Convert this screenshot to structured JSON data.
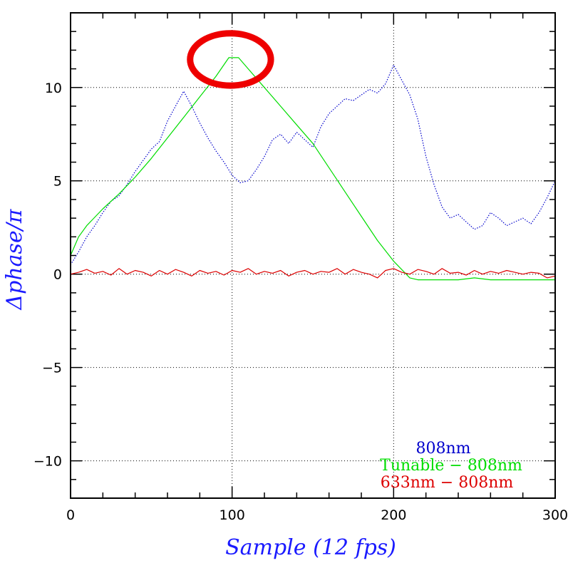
{
  "chart_data": {
    "type": "line",
    "xlabel": "Sample (12 fps)",
    "ylabel": "Δphase/π",
    "xlim": [
      0,
      300
    ],
    "ylim": [
      -12,
      14
    ],
    "x_ticks": [
      0,
      100,
      200,
      300
    ],
    "y_ticks": [
      -10,
      -5,
      0,
      5,
      10
    ],
    "x_tick_labels": [
      "0",
      "100",
      "200",
      "300"
    ],
    "y_tick_labels": [
      "−10",
      "−5",
      "0",
      "5",
      "10"
    ],
    "grid": true,
    "legend_position": "bottom-right",
    "series": [
      {
        "name": "808nm",
        "color": "#0000cc",
        "style": "dotted",
        "x": [
          0,
          5,
          10,
          15,
          20,
          25,
          30,
          35,
          40,
          45,
          50,
          55,
          60,
          65,
          70,
          75,
          80,
          85,
          90,
          95,
          100,
          105,
          110,
          115,
          120,
          125,
          130,
          135,
          140,
          145,
          150,
          155,
          160,
          165,
          170,
          175,
          180,
          185,
          190,
          195,
          200,
          205,
          210,
          215,
          220,
          225,
          230,
          235,
          240,
          245,
          250,
          255,
          260,
          265,
          270,
          275,
          280,
          285,
          290,
          295,
          300
        ],
        "y": [
          0.5,
          1.2,
          2.0,
          2.6,
          3.3,
          3.9,
          4.2,
          4.8,
          5.5,
          6.1,
          6.7,
          7.1,
          8.2,
          9.0,
          9.8,
          9.0,
          8.1,
          7.3,
          6.6,
          6.0,
          5.3,
          4.9,
          5.0,
          5.6,
          6.3,
          7.2,
          7.5,
          7.0,
          7.6,
          7.2,
          6.8,
          7.9,
          8.6,
          9.0,
          9.4,
          9.3,
          9.6,
          9.9,
          9.7,
          10.2,
          11.2,
          10.4,
          9.6,
          8.3,
          6.3,
          4.8,
          3.6,
          3.0,
          3.2,
          2.8,
          2.4,
          2.6,
          3.3,
          3.0,
          2.6,
          2.8,
          3.0,
          2.7,
          3.3,
          4.1,
          5.0
        ]
      },
      {
        "name": "Tunable − 808nm",
        "color": "#00dd00",
        "style": "solid",
        "x": [
          0,
          5,
          10,
          20,
          30,
          40,
          50,
          60,
          70,
          80,
          90,
          98,
          104,
          110,
          120,
          130,
          140,
          150,
          160,
          170,
          180,
          190,
          200,
          210,
          215,
          220,
          230,
          240,
          250,
          260,
          270,
          280,
          290,
          300
        ],
        "y": [
          1.0,
          2.0,
          2.6,
          3.5,
          4.3,
          5.2,
          6.2,
          7.3,
          8.4,
          9.5,
          10.6,
          11.6,
          11.6,
          11.0,
          10.0,
          9.0,
          8.0,
          7.0,
          5.7,
          4.4,
          3.1,
          1.8,
          0.7,
          -0.2,
          -0.3,
          -0.3,
          -0.3,
          -0.3,
          -0.2,
          -0.3,
          -0.3,
          -0.3,
          -0.3,
          -0.3
        ]
      },
      {
        "name": "633nm − 808nm",
        "color": "#dd0000",
        "style": "solid",
        "x": [
          0,
          5,
          10,
          15,
          20,
          25,
          30,
          35,
          40,
          45,
          50,
          55,
          60,
          65,
          70,
          75,
          80,
          85,
          90,
          95,
          100,
          105,
          110,
          115,
          120,
          125,
          130,
          135,
          140,
          145,
          150,
          155,
          160,
          165,
          170,
          175,
          180,
          185,
          190,
          195,
          200,
          205,
          210,
          215,
          220,
          225,
          230,
          235,
          240,
          245,
          250,
          255,
          260,
          265,
          270,
          275,
          280,
          285,
          290,
          295,
          300
        ],
        "y": [
          0.0,
          0.1,
          0.25,
          0.05,
          0.15,
          -0.05,
          0.3,
          0.0,
          0.2,
          0.1,
          -0.1,
          0.2,
          0.0,
          0.25,
          0.1,
          -0.1,
          0.2,
          0.05,
          0.15,
          -0.05,
          0.2,
          0.1,
          0.3,
          0.0,
          0.15,
          0.05,
          0.2,
          -0.1,
          0.1,
          0.2,
          0.0,
          0.15,
          0.1,
          0.3,
          0.0,
          0.25,
          0.1,
          0.0,
          -0.2,
          0.2,
          0.3,
          0.1,
          0.0,
          0.25,
          0.15,
          0.0,
          0.3,
          0.05,
          0.1,
          -0.05,
          0.2,
          0.0,
          0.15,
          0.05,
          0.2,
          0.1,
          0.0,
          0.1,
          0.05,
          -0.2,
          -0.1
        ]
      }
    ],
    "annotations": [
      {
        "type": "ellipse",
        "color": "#ee0000",
        "cx": 99,
        "cy": 11.5,
        "rx": 25,
        "ry": 1.4
      }
    ]
  }
}
